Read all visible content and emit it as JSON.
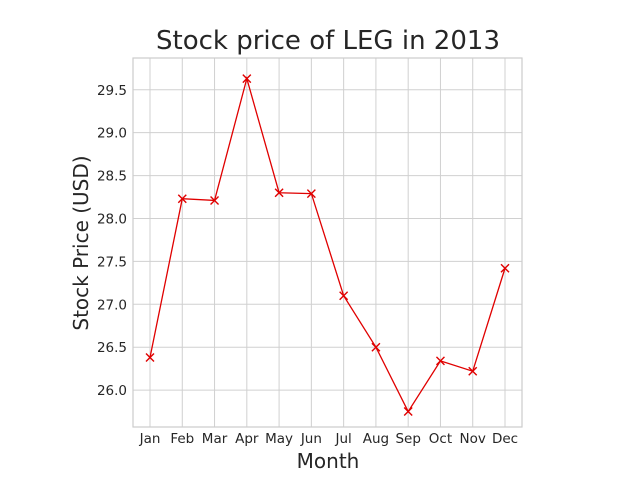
{
  "chart_data": {
    "type": "line",
    "title": "Stock price of LEG in 2013",
    "xlabel": "Month",
    "ylabel": "Stock Price (USD)",
    "categories": [
      "Jan",
      "Feb",
      "Mar",
      "Apr",
      "May",
      "Jun",
      "Jul",
      "Aug",
      "Sep",
      "Oct",
      "Nov",
      "Dec"
    ],
    "series": [
      {
        "values": [
          26.38,
          28.23,
          28.21,
          29.63,
          28.3,
          28.29,
          27.1,
          26.5,
          25.75,
          26.34,
          26.22,
          27.42
        ],
        "color": "#e00000",
        "marker": "x"
      }
    ],
    "ylim": [
      25.57,
      29.87
    ],
    "yticks": [
      "26.0",
      "26.5",
      "27.0",
      "27.5",
      "28.0",
      "28.5",
      "29.0",
      "29.5"
    ],
    "grid": true,
    "legend": "none"
  }
}
